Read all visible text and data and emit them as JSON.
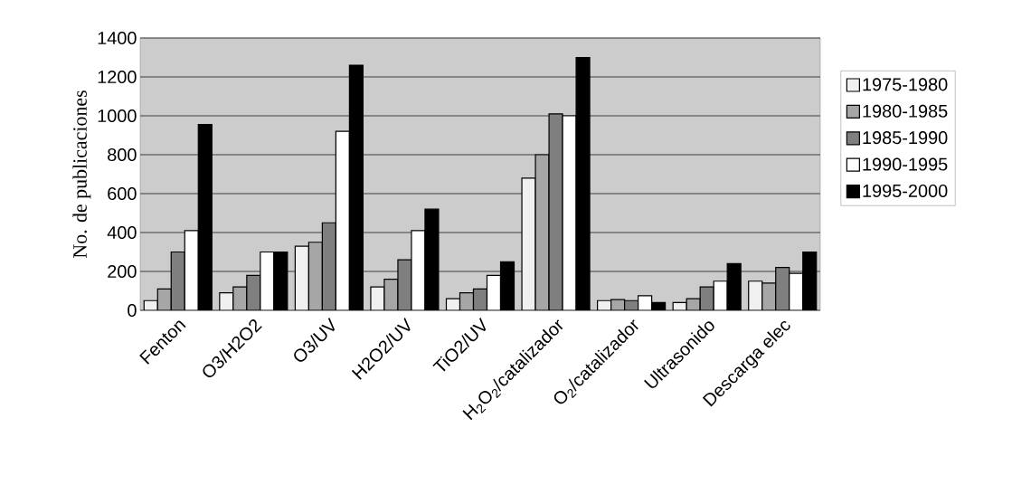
{
  "chart_data": {
    "type": "bar",
    "ylabel": "No. de publicaciones",
    "categories": [
      "Fenton",
      "O3/H2O2",
      "O3/UV",
      "H2O2/UV",
      "TiO2/UV",
      "H$_{2}$O$_{2}$/catalizador",
      "O$_{2}$/catalizador",
      "Ultrasonido",
      "Descarga elec"
    ],
    "series": [
      {
        "name": "1975-1980",
        "color": "#f0f0f0",
        "values": [
          50,
          90,
          330,
          120,
          60,
          680,
          50,
          40,
          150
        ]
      },
      {
        "name": "1980-1985",
        "color": "#a6a6a6",
        "values": [
          110,
          120,
          350,
          160,
          90,
          800,
          55,
          60,
          140
        ]
      },
      {
        "name": "1985-1990",
        "color": "#7f7f7f",
        "values": [
          300,
          180,
          450,
          260,
          110,
          1010,
          50,
          120,
          220
        ]
      },
      {
        "name": "1990-1995",
        "color": "#ffffff",
        "values": [
          410,
          300,
          920,
          410,
          180,
          1000,
          75,
          150,
          190
        ]
      },
      {
        "name": "1995-2000",
        "color": "#000000",
        "values": [
          955,
          300,
          1260,
          520,
          250,
          1300,
          40,
          240,
          300
        ]
      }
    ],
    "ylim": [
      0,
      1400
    ],
    "yticks": [
      0,
      200,
      400,
      600,
      800,
      1000,
      1200,
      1400
    ],
    "grid": "y",
    "legend": "right"
  }
}
